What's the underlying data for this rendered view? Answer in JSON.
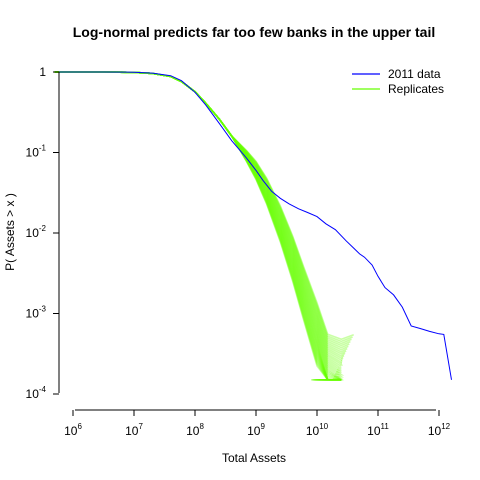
{
  "chart_data": {
    "type": "line",
    "title": "Log-normal predicts far too few banks in the upper tail",
    "xlabel": "Total Assets",
    "ylabel": "P( Assets > x )",
    "x_scale": "log",
    "y_scale": "log",
    "xlim": [
      500000,
      1600000000000
    ],
    "ylim": [
      0.0001,
      1
    ],
    "x_ticks": [
      {
        "base": "10",
        "exp": "6",
        "value": 1000000
      },
      {
        "base": "10",
        "exp": "7",
        "value": 10000000
      },
      {
        "base": "10",
        "exp": "8",
        "value": 100000000
      },
      {
        "base": "10",
        "exp": "9",
        "value": 1000000000
      },
      {
        "base": "10",
        "exp": "10",
        "value": 10000000000
      },
      {
        "base": "10",
        "exp": "11",
        "value": 100000000000
      },
      {
        "base": "10",
        "exp": "12",
        "value": 1000000000000
      }
    ],
    "y_ticks": [
      {
        "base": "1",
        "exp": "",
        "value": 1
      },
      {
        "base": "10",
        "exp": "-1",
        "value": 0.1
      },
      {
        "base": "10",
        "exp": "-2",
        "value": 0.01
      },
      {
        "base": "10",
        "exp": "-3",
        "value": 0.001
      },
      {
        "base": "10",
        "exp": "-4",
        "value": 0.0001
      }
    ],
    "legend": {
      "position": "top-right"
    },
    "series": [
      {
        "name": "2011 data",
        "color": "#0000ff",
        "x": [
          500000,
          1000000,
          3000000,
          10000000,
          20000000,
          40000000,
          60000000,
          100000000,
          150000000,
          250000000,
          400000000,
          700000000,
          1000000000,
          1300000000,
          1800000000,
          2500000000,
          3500000000,
          5000000000,
          7000000000,
          10000000000,
          14000000000,
          20000000000,
          30000000000,
          40000000000,
          50000000000,
          60000000000,
          80000000000,
          100000000000,
          130000000000,
          180000000000,
          250000000000,
          350000000000,
          500000000000,
          700000000000,
          1000000000000,
          1200000000000,
          1600000000000
        ],
        "y": [
          1,
          1,
          0.999,
          0.993,
          0.97,
          0.9,
          0.78,
          0.56,
          0.39,
          0.23,
          0.14,
          0.085,
          0.06,
          0.045,
          0.033,
          0.027,
          0.023,
          0.02,
          0.018,
          0.016,
          0.013,
          0.011,
          0.008,
          0.0065,
          0.0055,
          0.005,
          0.004,
          0.0029,
          0.0021,
          0.0017,
          0.0012,
          0.0007,
          0.00065,
          0.0006,
          0.00056,
          0.00055,
          0.00015
        ]
      },
      {
        "name": "Replicates",
        "color": "#66ff00",
        "x": [
          500000,
          1000000,
          3000000,
          10000000,
          20000000,
          40000000,
          60000000,
          100000000,
          150000000,
          250000000,
          400000000,
          700000000,
          1000000000,
          1500000000,
          2500000000,
          4000000000,
          6000000000,
          10000000000,
          15000000000,
          25000000000,
          40000000000
        ],
        "y": [
          1,
          1,
          0.999,
          0.99,
          0.96,
          0.88,
          0.76,
          0.57,
          0.41,
          0.26,
          0.16,
          0.09,
          0.06,
          0.033,
          0.013,
          0.0048,
          0.0018,
          0.00055,
          0.0002,
          0.00015,
          0.00015
        ]
      }
    ],
    "grid": false
  }
}
